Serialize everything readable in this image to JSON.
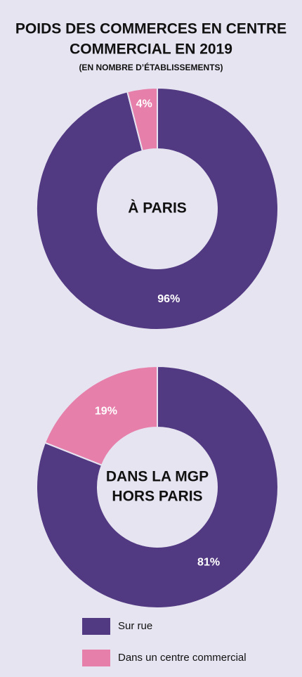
{
  "title": [
    "POIDS DES COMMERCES EN CENTRE",
    "COMMERCIAL EN 2019"
  ],
  "subtitle": "(EN NOMBRE D’ÉTABLISSEMENTS)",
  "chart_data": [
    {
      "type": "donut",
      "center_label": [
        "À PARIS"
      ],
      "categories": [
        "Sur rue",
        "Dans un centre commercial"
      ],
      "values": [
        96,
        4
      ],
      "value_labels": [
        "96%",
        "4%"
      ],
      "colors": [
        "#523a82",
        "#e77fab"
      ]
    },
    {
      "type": "donut",
      "center_label": [
        "DANS LA MGP",
        "HORS PARIS"
      ],
      "categories": [
        "Sur rue",
        "Dans un centre commercial"
      ],
      "values": [
        81,
        19
      ],
      "value_labels": [
        "81%",
        "19%"
      ],
      "colors": [
        "#523a82",
        "#e77fab"
      ]
    }
  ]
}
